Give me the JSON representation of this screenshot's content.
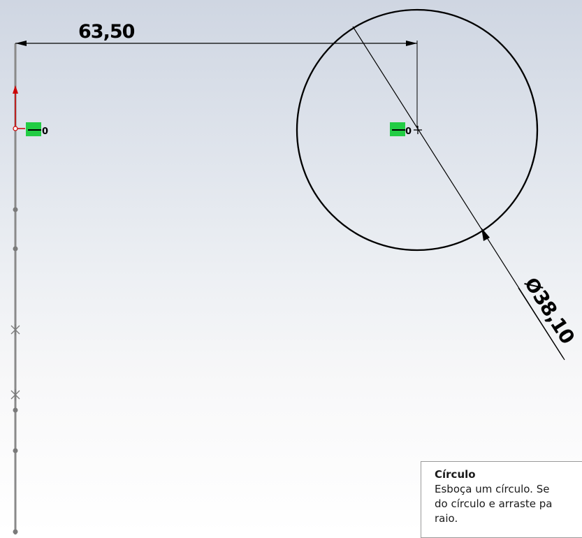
{
  "viewport": {
    "background_top": "#cfd6e2",
    "background_bottom": "#ffffff"
  },
  "sketch": {
    "horizontal_dimension": "63,50",
    "diameter_symbol": "Ø",
    "diameter_value": "38,10",
    "relation_marker_left": "0",
    "relation_marker_center": "0",
    "origin_axis_color": "#cc0000",
    "relation_color": "#22cc44"
  },
  "tooltip": {
    "title": "Círculo",
    "line1": "Esboça um círculo. Se",
    "line2": "do círculo e arraste pa",
    "line3": "raio."
  }
}
